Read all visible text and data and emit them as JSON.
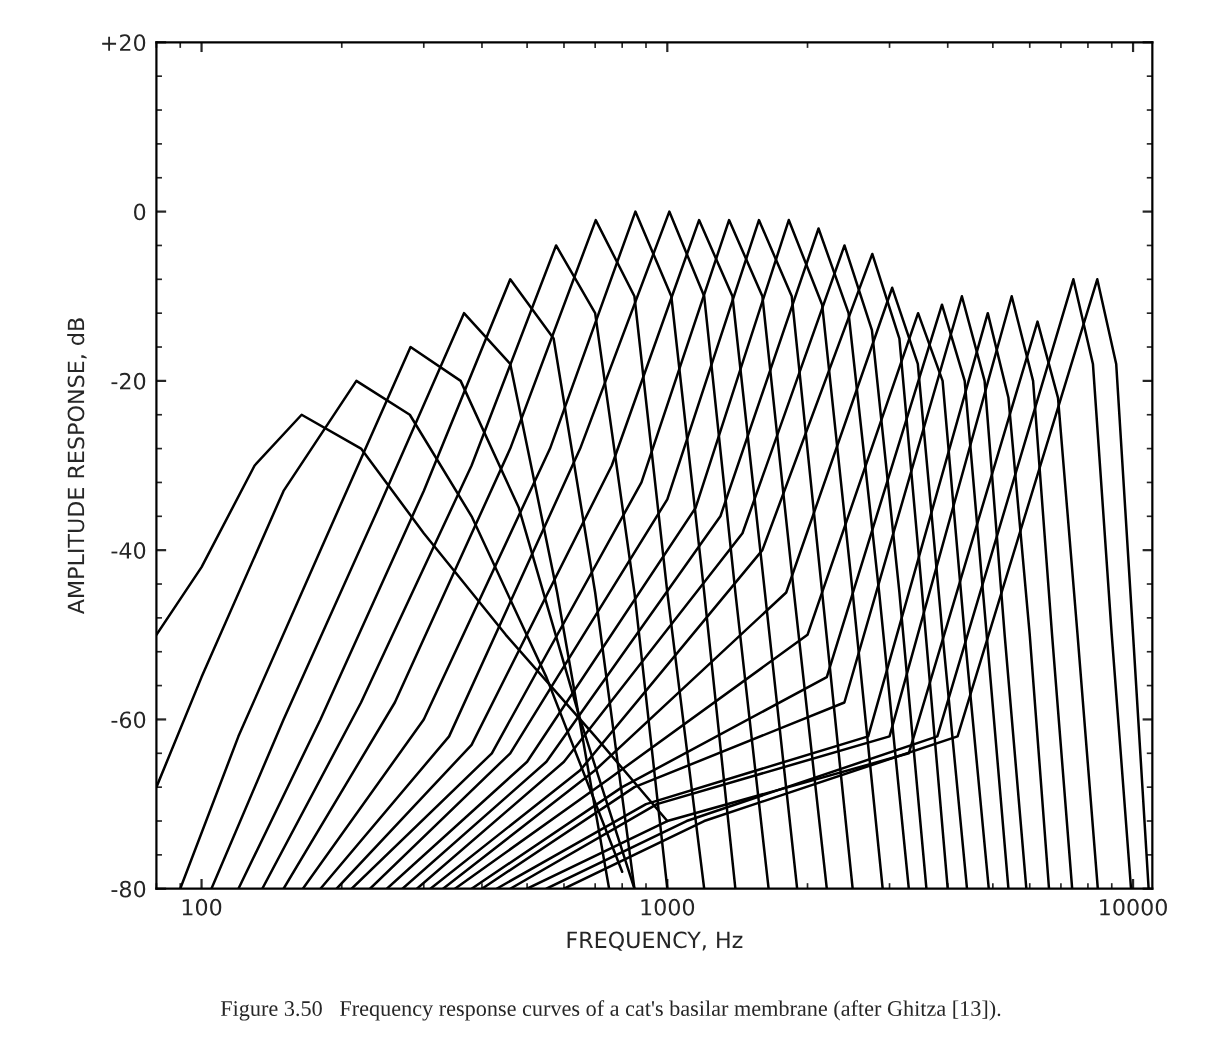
{
  "chart_data": {
    "type": "line",
    "log": "x",
    "grid": false,
    "line_style": "solid",
    "xlabel": "FREQUENCY, Hz",
    "ylabel": "AMPLITUDE RESPONSE, dB",
    "xlim": [
      80,
      11000
    ],
    "xticks": [
      100,
      1000,
      10000
    ],
    "ylim": [
      -80,
      20
    ],
    "yticks": [
      {
        "value": 20,
        "label": "+20"
      },
      0,
      -20,
      -40,
      -60,
      -80
    ],
    "annotations": [
      "Figure 3.50   Frequency response curves of a cat's basilar membrane (after Ghitza [13])."
    ],
    "series": [
      {
        "color": "#000000",
        "x": [
          80,
          100,
          130,
          164,
          220,
          300,
          450,
          700,
          1000
        ],
        "values": [
          -50,
          -42,
          -30,
          -24,
          -28,
          -38,
          -50,
          -62,
          -72
        ]
      },
      {
        "color": "#000000",
        "x": [
          80,
          100,
          150,
          215,
          280,
          380,
          550,
          800
        ],
        "values": [
          -68,
          -55,
          -33,
          -20,
          -24,
          -36,
          -55,
          -78
        ]
      },
      {
        "color": "#000000",
        "x": [
          90,
          120,
          180,
          281,
          360,
          480,
          650,
          850
        ],
        "values": [
          -80,
          -62,
          -40,
          -16,
          -20,
          -35,
          -60,
          -80
        ]
      },
      {
        "color": "#000000",
        "x": [
          105,
          150,
          240,
          366,
          460,
          580,
          750
        ],
        "values": [
          -80,
          -60,
          -35,
          -12,
          -18,
          -45,
          -80
        ]
      },
      {
        "color": "#000000",
        "x": [
          120,
          180,
          300,
          460,
          570,
          700,
          850
        ],
        "values": [
          -80,
          -60,
          -33,
          -8,
          -15,
          -45,
          -80
        ]
      },
      {
        "color": "#000000",
        "x": [
          135,
          220,
          380,
          577,
          700,
          850,
          1000
        ],
        "values": [
          -80,
          -58,
          -30,
          -4,
          -12,
          -45,
          -80
        ]
      },
      {
        "color": "#000000",
        "x": [
          150,
          260,
          460,
          702,
          850,
          1000,
          1200
        ],
        "values": [
          -80,
          -58,
          -28,
          -1,
          -10,
          -45,
          -80
        ]
      },
      {
        "color": "#000000",
        "x": [
          165,
          300,
          560,
          854,
          1020,
          1200,
          1400
        ],
        "values": [
          -80,
          -60,
          -28,
          0,
          -10,
          -45,
          -80
        ]
      },
      {
        "color": "#000000",
        "x": [
          180,
          340,
          650,
          1010,
          1200,
          1400,
          1650
        ],
        "values": [
          -80,
          -62,
          -28,
          0,
          -10,
          -45,
          -80
        ]
      },
      {
        "color": "#000000",
        "x": [
          195,
          380,
          760,
          1170,
          1380,
          1620,
          1900
        ],
        "values": [
          -80,
          -63,
          -30,
          -1,
          -10,
          -45,
          -80
        ]
      },
      {
        "color": "#000000",
        "x": [
          210,
          420,
          880,
          1357,
          1600,
          1870,
          2200
        ],
        "values": [
          -80,
          -64,
          -32,
          -1,
          -10,
          -45,
          -80
        ]
      },
      {
        "color": "#000000",
        "x": [
          230,
          460,
          1000,
          1573,
          1850,
          2150,
          2500
        ],
        "values": [
          -80,
          -64,
          -34,
          -1,
          -10,
          -45,
          -80
        ]
      },
      {
        "color": "#000000",
        "x": [
          250,
          500,
          1150,
          1823,
          2150,
          2500,
          2900
        ],
        "values": [
          -80,
          -65,
          -35,
          -1,
          -11,
          -45,
          -80
        ]
      },
      {
        "color": "#000000",
        "x": [
          270,
          550,
          1300,
          2112,
          2450,
          2850,
          3300
        ],
        "values": [
          -80,
          -65,
          -36,
          -2,
          -12,
          -45,
          -80
        ]
      },
      {
        "color": "#000000",
        "x": [
          290,
          600,
          1450,
          2401,
          2750,
          3150,
          3600
        ],
        "values": [
          -80,
          -65,
          -38,
          -4,
          -14,
          -45,
          -80
        ]
      },
      {
        "color": "#000000",
        "x": [
          310,
          650,
          1600,
          2755,
          3150,
          3550,
          4000
        ],
        "values": [
          -80,
          -66,
          -40,
          -5,
          -15,
          -47,
          -80
        ]
      },
      {
        "color": "#000000",
        "x": [
          330,
          700,
          1800,
          3040,
          3450,
          3900,
          4400
        ],
        "values": [
          -80,
          -66,
          -45,
          -9,
          -18,
          -50,
          -80
        ]
      },
      {
        "color": "#000000",
        "x": [
          350,
          750,
          2000,
          3455,
          3900,
          4350,
          4900
        ],
        "values": [
          -80,
          -67,
          -50,
          -12,
          -20,
          -50,
          -80
        ]
      },
      {
        "color": "#000000",
        "x": [
          380,
          800,
          2200,
          3888,
          4350,
          4850,
          5400
        ],
        "values": [
          -80,
          -68,
          -55,
          -11,
          -20,
          -50,
          -80
        ]
      },
      {
        "color": "#000000",
        "x": [
          400,
          850,
          2400,
          4290,
          4800,
          5300,
          5900
        ],
        "values": [
          -80,
          -68,
          -58,
          -10,
          -20,
          -50,
          -80
        ]
      },
      {
        "color": "#000000",
        "x": [
          430,
          900,
          2700,
          4876,
          5400,
          6000,
          6600
        ],
        "values": [
          -80,
          -70,
          -62,
          -12,
          -22,
          -50,
          -80
        ]
      },
      {
        "color": "#000000",
        "x": [
          460,
          950,
          3000,
          5488,
          6100,
          6700,
          7400
        ],
        "values": [
          -80,
          -70,
          -62,
          -10,
          -20,
          -50,
          -80
        ]
      },
      {
        "color": "#000000",
        "x": [
          500,
          1000,
          3300,
          6235,
          6900,
          7600,
          8400
        ],
        "values": [
          -80,
          -72,
          -64,
          -13,
          -22,
          -50,
          -80
        ]
      },
      {
        "color": "#000000",
        "x": [
          550,
          1100,
          3800,
          7444,
          8200,
          9000,
          9900
        ],
        "values": [
          -80,
          -72,
          -62,
          -8,
          -18,
          -50,
          -80
        ]
      },
      {
        "color": "#000000",
        "x": [
          600,
          1200,
          4200,
          8378,
          9200,
          10000,
          10800
        ],
        "values": [
          -80,
          -72,
          -62,
          -8,
          -18,
          -50,
          -80
        ]
      }
    ]
  }
}
